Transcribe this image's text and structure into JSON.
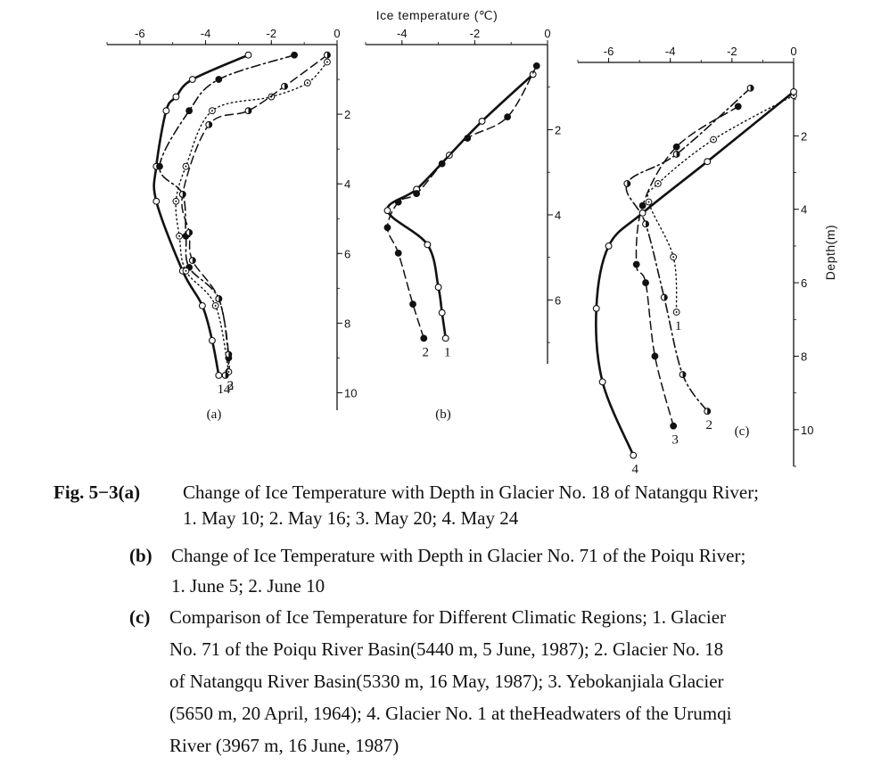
{
  "figure": {
    "top_title": "Ice temperature (℃)",
    "depth_label": "Depth(m)"
  },
  "chart_data": [
    {
      "type": "line",
      "panel": "(a)",
      "xlabel": "Ice temperature (℃)",
      "ylabel": "Depth (m)",
      "xlim": [
        -7,
        0
      ],
      "ylim": [
        0,
        10.5
      ],
      "xticks": [
        "-6",
        "-4",
        "-2",
        "0"
      ],
      "yticks": [
        "2",
        "4",
        "6",
        "8",
        "10"
      ],
      "series": [
        {
          "name": "1",
          "line": "solid",
          "marker": "open",
          "x": [
            -2.7,
            -4.4,
            -4.9,
            -5.2,
            -5.5,
            -5.5,
            -4.7,
            -4.1,
            -3.8,
            -3.6
          ],
          "y": [
            0.3,
            1.0,
            1.5,
            1.9,
            3.5,
            4.5,
            6.5,
            7.5,
            8.5,
            9.5
          ]
        },
        {
          "name": "2",
          "line": "dashdot",
          "marker": "filled",
          "x": [
            -1.3,
            -3.6,
            -4.5,
            -5.4,
            -4.7,
            -4.6,
            -4.5,
            -3.6,
            -3.3,
            -3.3
          ],
          "y": [
            0.3,
            1.0,
            1.9,
            3.5,
            4.3,
            5.5,
            6.4,
            7.3,
            9.0,
            9.4
          ]
        },
        {
          "name": "3",
          "line": "dotted",
          "marker": "dotted",
          "x": [
            -0.3,
            -0.9,
            -2.0,
            -3.8,
            -4.6,
            -4.9,
            -4.8,
            -4.6,
            -3.7,
            -3.3
          ],
          "y": [
            0.5,
            1.1,
            1.5,
            1.9,
            3.5,
            4.5,
            5.5,
            6.5,
            7.5,
            9.4
          ]
        },
        {
          "name": "4",
          "line": "dashed",
          "marker": "half",
          "x": [
            -0.3,
            -1.6,
            -2.7,
            -3.9,
            -4.7,
            -4.5,
            -4.4,
            -3.6,
            -3.3,
            -3.4
          ],
          "y": [
            0.3,
            1.2,
            1.9,
            2.3,
            4.3,
            5.4,
            6.2,
            7.3,
            8.9,
            9.5
          ]
        }
      ]
    },
    {
      "type": "line",
      "panel": "(b)",
      "xlabel": "Ice temperature (℃)",
      "ylabel": "Depth (m)",
      "xlim": [
        -5,
        0
      ],
      "ylim": [
        0,
        7.5
      ],
      "xticks": [
        "-4",
        "-2",
        "0"
      ],
      "yticks": [
        "2",
        "4",
        "6"
      ],
      "series": [
        {
          "name": "1",
          "line": "solid",
          "marker": "open",
          "x": [
            -0.4,
            -1.8,
            -2.7,
            -3.6,
            -4.4,
            -3.3,
            -3.0,
            -2.9,
            -2.8
          ],
          "y": [
            0.7,
            1.8,
            2.6,
            3.4,
            3.9,
            4.7,
            5.7,
            6.3,
            6.9
          ]
        },
        {
          "name": "2",
          "line": "dashed",
          "marker": "filled",
          "x": [
            -0.3,
            -1.1,
            -2.2,
            -2.9,
            -3.6,
            -4.1,
            -4.4,
            -4.1,
            -3.7,
            -3.4
          ],
          "y": [
            0.5,
            1.7,
            2.2,
            2.8,
            3.5,
            3.7,
            4.3,
            4.9,
            6.1,
            6.9
          ]
        }
      ]
    },
    {
      "type": "line",
      "panel": "(c)",
      "xlabel": "Ice temperature (℃)",
      "ylabel": "Depth (m)",
      "xlim": [
        -7,
        0
      ],
      "ylim": [
        0,
        11
      ],
      "xticks": [
        "-6",
        "-4",
        "-2",
        "0"
      ],
      "yticks": [
        "2",
        "4",
        "6",
        "8",
        "10"
      ],
      "series": [
        {
          "name": "1",
          "line": "dotted",
          "marker": "dotted",
          "x": [
            0,
            -2.6,
            -4.4,
            -4.7,
            -3.9,
            -3.8
          ],
          "y": [
            0.9,
            2.1,
            3.3,
            3.8,
            5.3,
            6.8
          ]
        },
        {
          "name": "2",
          "line": "dashdot",
          "marker": "half",
          "x": [
            -1.4,
            -3.8,
            -5.4,
            -4.8,
            -4.2,
            -3.6,
            -2.8
          ],
          "y": [
            0.7,
            2.5,
            3.3,
            4.4,
            6.4,
            8.5,
            9.5
          ]
        },
        {
          "name": "3",
          "line": "dashed",
          "marker": "filled",
          "x": [
            -1.8,
            -3.8,
            -4.9,
            -5.1,
            -4.8,
            -4.5,
            -3.9
          ],
          "y": [
            1.2,
            2.3,
            3.9,
            5.5,
            6.0,
            8.0,
            9.9
          ]
        },
        {
          "name": "4",
          "line": "solid",
          "marker": "open",
          "x": [
            0,
            -2.8,
            -4.9,
            -6.0,
            -6.4,
            -6.2,
            -5.2
          ],
          "y": [
            0.8,
            2.7,
            4.1,
            5.0,
            6.7,
            8.7,
            10.7
          ]
        }
      ]
    }
  ],
  "caption": {
    "a_label": "Fig. 5−3(a)",
    "a_line1": "Change of Ice Temperature with Depth in Glacier No. 18 of Natangqu River;",
    "a_line2": "1. May 10;  2. May 16;  3. May 20;  4. May 24",
    "b_label": "(b)",
    "b_line1": "Change of Ice Temperature with Depth in Glacier No. 71 of the Poiqu River;",
    "b_line2": "1. June 5;  2. June 10",
    "c_label": "(c)",
    "c_line1": "Comparison of Ice Temperature for Different Climatic Regions; 1. Glacier",
    "c_line2": "No. 71 of the Poiqu River Basin(5440 m,  5 June, 1987);  2. Glacier No. 18",
    "c_line3": "of Natangqu River Basin(5330 m, 16  May, 1987);  3. Yebokanjiala Glacier",
    "c_line4": "(5650 m, 20 April, 1964);  4. Glacier No. 1 at theHeadwaters of the Urumqi",
    "c_line5": "River (3967 m, 16 June,  1987)"
  }
}
